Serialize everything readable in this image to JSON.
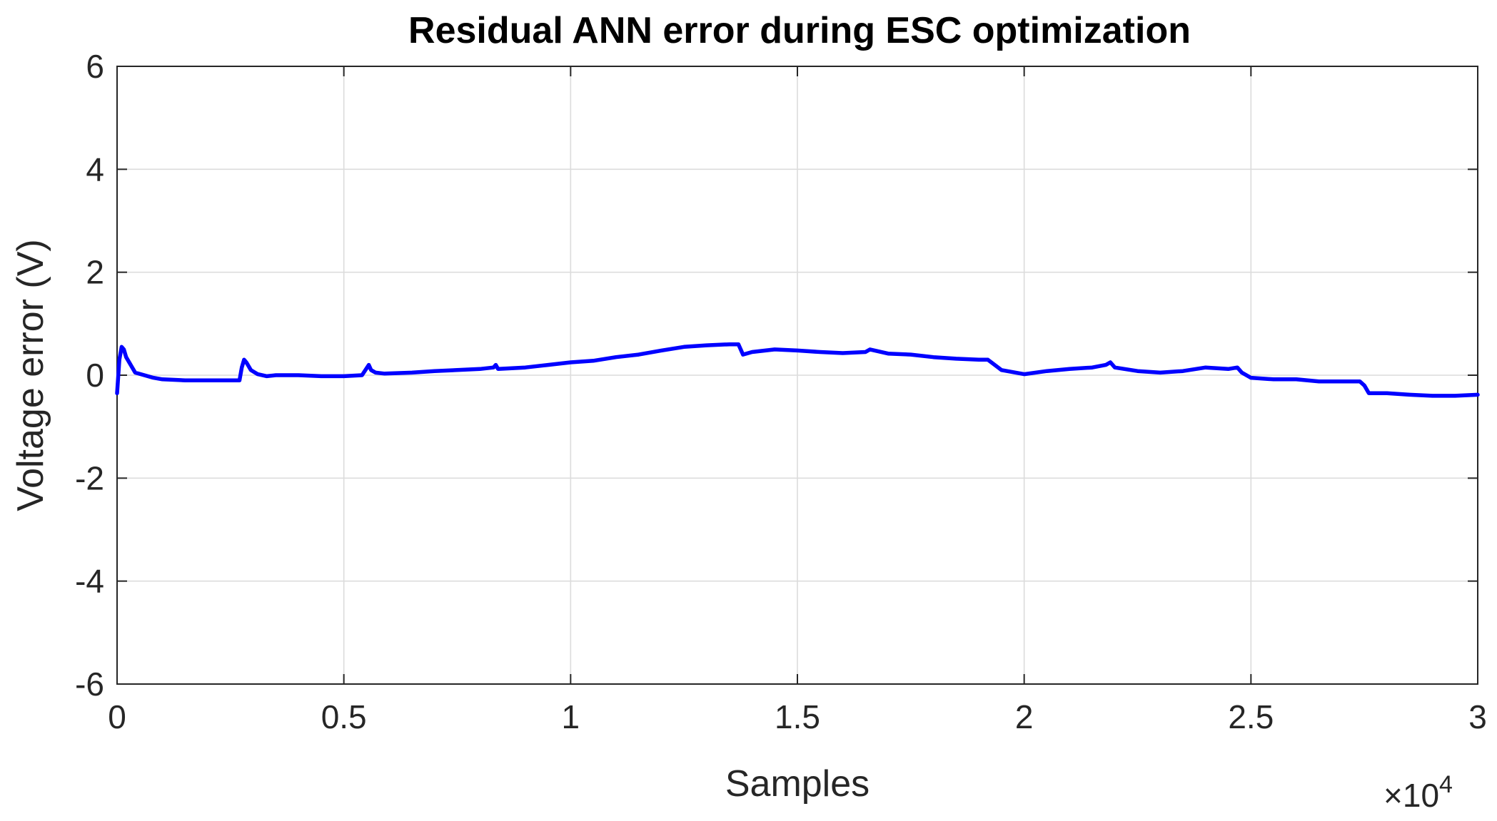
{
  "chart_data": {
    "type": "line",
    "title": "Residual ANN error during ESC optimization",
    "xlabel": "Samples",
    "ylabel": "Voltage error (V)",
    "xlim": [
      0,
      30000
    ],
    "ylim": [
      -6,
      6
    ],
    "x_ticks": [
      0,
      5000,
      10000,
      15000,
      20000,
      25000,
      30000
    ],
    "x_tick_labels": [
      "0",
      "0.5",
      "1",
      "1.5",
      "2",
      "2.5",
      "3"
    ],
    "y_ticks": [
      -6,
      -4,
      -2,
      0,
      2,
      4,
      6
    ],
    "y_tick_labels": [
      "-6",
      "-4",
      "-2",
      "0",
      "2",
      "4",
      "6"
    ],
    "x_exponent_prefix": "×10",
    "x_exponent_power": "4",
    "grid": true,
    "series_color": "#0000ff",
    "series": [
      {
        "x": [
          0,
          50,
          100,
          150,
          200,
          300,
          400,
          600,
          800,
          1000,
          1500,
          2000,
          2500,
          2700,
          2750,
          2800,
          2850,
          2950,
          3100,
          3300,
          3500,
          4000,
          4500,
          5000,
          5400,
          5550,
          5600,
          5700,
          5900,
          6500,
          7000,
          7500,
          8000,
          8300,
          8350,
          8400,
          9000,
          9500,
          10000,
          10500,
          11000,
          11500,
          12000,
          12500,
          13000,
          13500,
          13700,
          13800,
          14000,
          14500,
          15000,
          15500,
          16000,
          16500,
          16600,
          17000,
          17500,
          18000,
          18500,
          19000,
          19200,
          19500,
          20000,
          20500,
          21000,
          21500,
          21800,
          21900,
          22000,
          22500,
          23000,
          23500,
          24000,
          24500,
          24700,
          24800,
          25000,
          25500,
          26000,
          26500,
          27000,
          27400,
          27500,
          27600,
          28000,
          28500,
          29000,
          29500,
          30000
        ],
        "values": [
          -0.35,
          0.3,
          0.55,
          0.5,
          0.35,
          0.2,
          0.05,
          0.0,
          -0.05,
          -0.08,
          -0.1,
          -0.1,
          -0.1,
          -0.1,
          0.15,
          0.3,
          0.25,
          0.1,
          0.02,
          -0.02,
          0.0,
          0.0,
          -0.02,
          -0.02,
          0.0,
          0.2,
          0.1,
          0.05,
          0.03,
          0.05,
          0.08,
          0.1,
          0.12,
          0.15,
          0.2,
          0.12,
          0.15,
          0.2,
          0.25,
          0.28,
          0.35,
          0.4,
          0.48,
          0.55,
          0.58,
          0.6,
          0.6,
          0.4,
          0.45,
          0.5,
          0.48,
          0.45,
          0.43,
          0.45,
          0.5,
          0.42,
          0.4,
          0.35,
          0.32,
          0.3,
          0.3,
          0.1,
          0.02,
          0.08,
          0.12,
          0.15,
          0.2,
          0.25,
          0.15,
          0.08,
          0.05,
          0.08,
          0.15,
          0.12,
          0.15,
          0.05,
          -0.05,
          -0.08,
          -0.08,
          -0.12,
          -0.12,
          -0.12,
          -0.2,
          -0.35,
          -0.35,
          -0.38,
          -0.4,
          -0.4,
          -0.38
        ]
      }
    ]
  }
}
